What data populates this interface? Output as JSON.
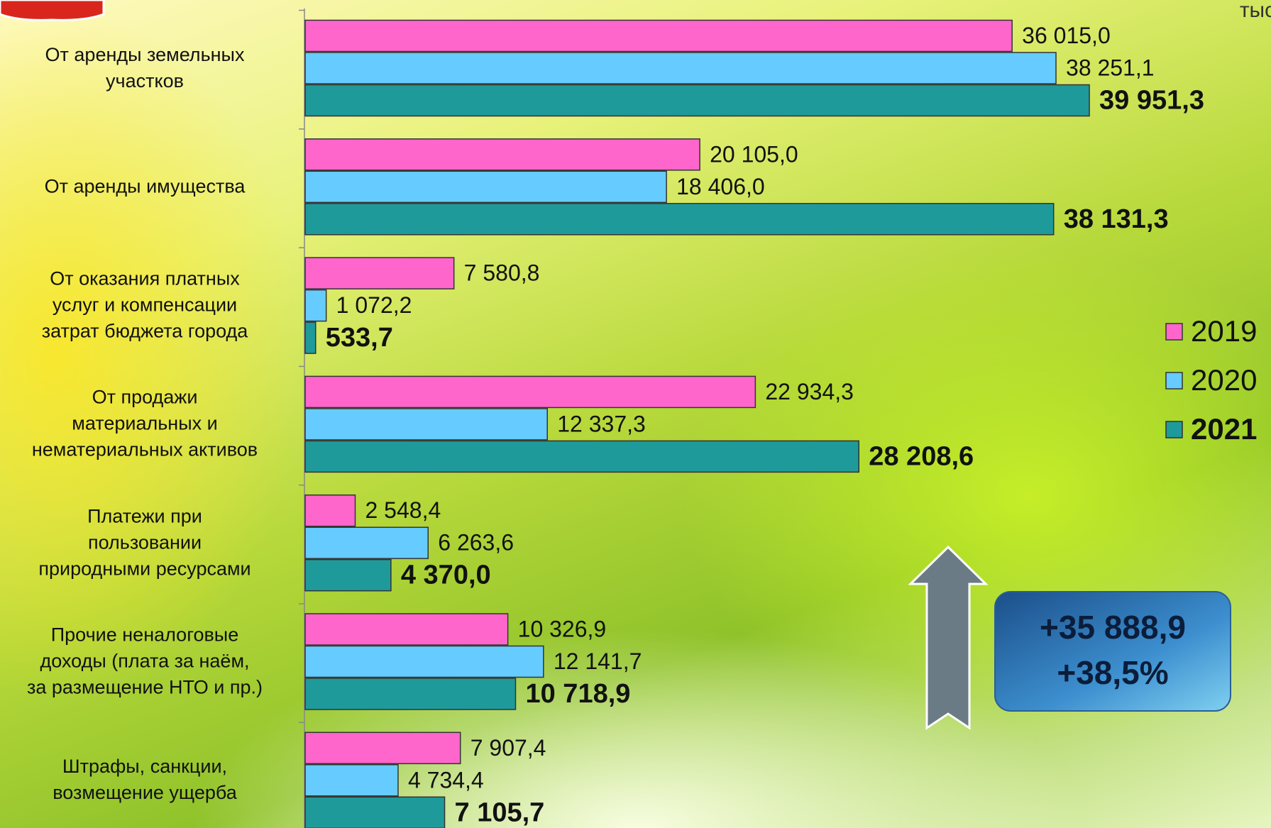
{
  "chart_data": {
    "type": "bar",
    "orientation": "horizontal",
    "unit": "тыс. руб.",
    "categories": [
      "От аренды земельных\nучастков",
      "От аренды имущества",
      "От оказания платных\nуслуг и компенсации\nзатрат бюджета города",
      "От продажи\nматериальных и\nнематериальных активов",
      "Платежи при\nпользовании\nприродными ресурсами",
      "Прочие неналоговые\nдоходы (плата за наём,\nза размещение НТО и пр.)",
      "Штрафы, санкции,\nвозмещение ущерба"
    ],
    "series": [
      {
        "name": "2019",
        "color": "#ff66cc",
        "bold": false,
        "values": [
          36015.0,
          20105.0,
          7580.8,
          22934.3,
          2548.4,
          10326.9,
          7907.4
        ],
        "value_labels": [
          "36 015,0",
          "20 105,0",
          "7 580,8",
          "22 934,3",
          "2 548,4",
          "10 326,9",
          "7 907,4"
        ]
      },
      {
        "name": "2020",
        "color": "#66ccff",
        "bold": false,
        "values": [
          38251.1,
          18406.0,
          1072.2,
          12337.3,
          6263.6,
          12141.7,
          4734.4
        ],
        "value_labels": [
          "38 251,1",
          "18 406,0",
          "1 072,2",
          "12 337,3",
          "6 263,6",
          "12 141,7",
          "4 734,4"
        ]
      },
      {
        "name": "2021",
        "color": "#1f9a9a",
        "bold": true,
        "values": [
          39951.3,
          38131.3,
          533.7,
          28208.6,
          4370.0,
          10718.9,
          7105.7
        ],
        "value_labels": [
          "39 951,3",
          "38 131,3",
          "533,7",
          "28 208,6",
          "4 370,0",
          "10 718,9",
          "7 105,7"
        ]
      }
    ],
    "legend": "right",
    "annotation": [
      "+35 888,9",
      "+38,5%"
    ]
  }
}
